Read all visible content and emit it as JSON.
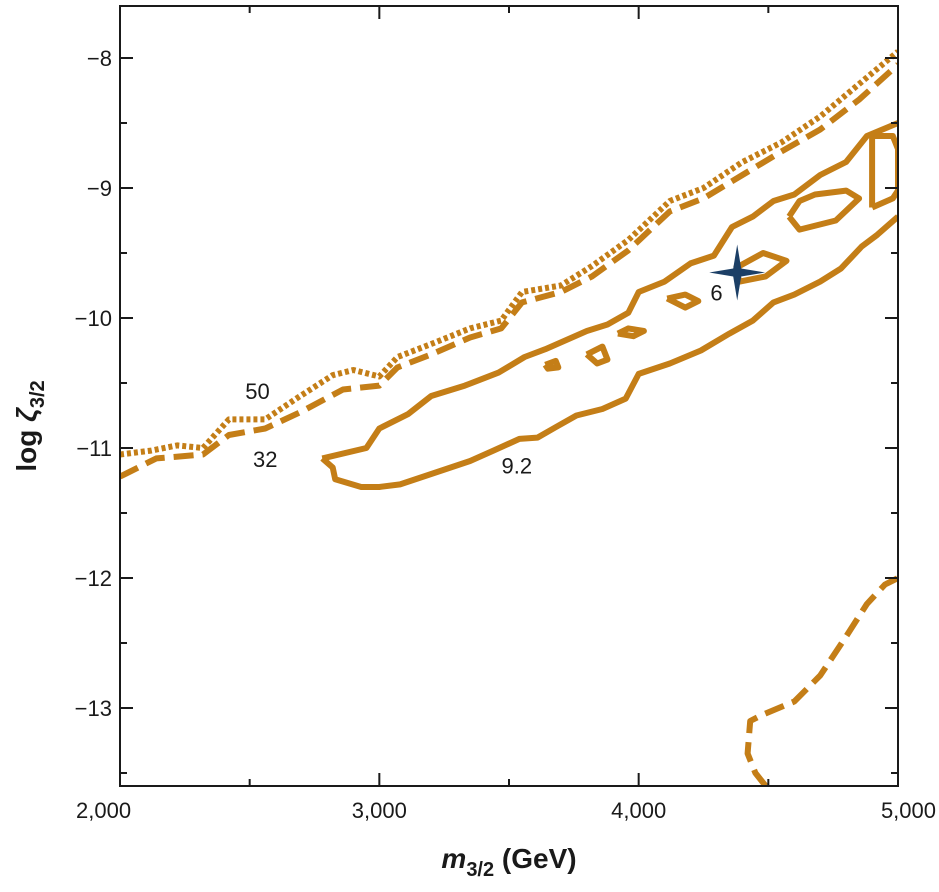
{
  "chart_data": {
    "type": "contour",
    "xlabel": {
      "symbol": "m",
      "sub": "3/2",
      "unit": " (GeV)"
    },
    "ylabel": {
      "prefix": "log ",
      "symbol": "ζ",
      "sub": "3/2"
    },
    "xlim": [
      2000,
      5000
    ],
    "ylim": [
      -13.6,
      -7.6
    ],
    "x_ticks": [
      2000,
      3000,
      4000,
      5000
    ],
    "x_tick_labels": [
      "2,000",
      "3,000",
      "4,000",
      "5,000"
    ],
    "y_ticks": [
      -8,
      -9,
      -10,
      -11,
      -12,
      -13
    ],
    "y_tick_labels": [
      "−8",
      "−9",
      "−10",
      "−11",
      "−12",
      "−13"
    ],
    "grid": false,
    "colors": {
      "contour": "#c47e17",
      "marker": "#1c3f66",
      "axis": "#1a1a1a"
    },
    "contours": [
      {
        "label": "50",
        "style": "dotted",
        "paths": [
          [
            [
              2000,
              -11.05
            ],
            [
              2120,
              -11.02
            ],
            [
              2220,
              -10.98
            ],
            [
              2320,
              -11.0
            ],
            [
              2420,
              -10.78
            ],
            [
              2560,
              -10.78
            ],
            [
              2680,
              -10.62
            ],
            [
              2820,
              -10.44
            ],
            [
              2900,
              -10.4
            ],
            [
              3000,
              -10.45
            ],
            [
              3070,
              -10.3
            ],
            [
              3200,
              -10.2
            ],
            [
              3350,
              -10.08
            ],
            [
              3470,
              -10.02
            ],
            [
              3550,
              -9.8
            ],
            [
              3700,
              -9.75
            ],
            [
              3820,
              -9.6
            ],
            [
              3960,
              -9.4
            ],
            [
              4120,
              -9.1
            ],
            [
              4250,
              -9.0
            ],
            [
              4400,
              -8.8
            ],
            [
              4550,
              -8.65
            ],
            [
              4700,
              -8.45
            ],
            [
              4850,
              -8.2
            ],
            [
              5000,
              -7.95
            ]
          ]
        ]
      },
      {
        "label": "32",
        "style": "dashed",
        "paths": [
          [
            [
              2000,
              -11.22
            ],
            [
              2140,
              -11.08
            ],
            [
              2320,
              -11.05
            ],
            [
              2420,
              -10.9
            ],
            [
              2560,
              -10.85
            ],
            [
              2700,
              -10.72
            ],
            [
              2860,
              -10.55
            ],
            [
              3000,
              -10.52
            ],
            [
              3070,
              -10.38
            ],
            [
              3200,
              -10.28
            ],
            [
              3350,
              -10.15
            ],
            [
              3470,
              -10.08
            ],
            [
              3550,
              -9.88
            ],
            [
              3700,
              -9.8
            ],
            [
              3820,
              -9.68
            ],
            [
              3960,
              -9.48
            ],
            [
              4120,
              -9.18
            ],
            [
              4250,
              -9.08
            ],
            [
              4400,
              -8.9
            ],
            [
              4550,
              -8.72
            ],
            [
              4700,
              -8.55
            ],
            [
              4850,
              -8.32
            ],
            [
              5000,
              -8.05
            ]
          ],
          [
            [
              4490,
              -13.6
            ],
            [
              4450,
              -13.5
            ],
            [
              4420,
              -13.35
            ],
            [
              4430,
              -13.1
            ],
            [
              4480,
              -13.05
            ],
            [
              4600,
              -12.95
            ],
            [
              4700,
              -12.75
            ],
            [
              4800,
              -12.45
            ],
            [
              4880,
              -12.2
            ],
            [
              4950,
              -12.05
            ],
            [
              5000,
              -12.0
            ]
          ]
        ]
      },
      {
        "label": "9.2",
        "style": "solid",
        "paths": [
          [
            [
              2780,
              -11.08
            ],
            [
              2950,
              -11.0
            ],
            [
              3000,
              -10.85
            ],
            [
              3110,
              -10.74
            ],
            [
              3200,
              -10.6
            ],
            [
              3330,
              -10.52
            ],
            [
              3460,
              -10.42
            ],
            [
              3560,
              -10.3
            ],
            [
              3640,
              -10.24
            ],
            [
              3800,
              -10.1
            ],
            [
              3880,
              -10.05
            ],
            [
              3960,
              -9.96
            ],
            [
              4000,
              -9.8
            ],
            [
              4100,
              -9.72
            ],
            [
              4200,
              -9.58
            ],
            [
              4290,
              -9.52
            ],
            [
              4360,
              -9.3
            ],
            [
              4440,
              -9.22
            ],
            [
              4520,
              -9.1
            ],
            [
              4600,
              -9.05
            ],
            [
              4700,
              -8.9
            ],
            [
              4800,
              -8.8
            ],
            [
              4880,
              -8.6
            ],
            [
              5000,
              -8.5
            ]
          ],
          [
            [
              2780,
              -11.08
            ],
            [
              2820,
              -11.15
            ],
            [
              2830,
              -11.24
            ],
            [
              2930,
              -11.3
            ],
            [
              3000,
              -11.3
            ],
            [
              3080,
              -11.28
            ],
            [
              3200,
              -11.2
            ],
            [
              3350,
              -11.1
            ],
            [
              3440,
              -11.02
            ],
            [
              3540,
              -10.93
            ],
            [
              3610,
              -10.92
            ],
            [
              3680,
              -10.84
            ],
            [
              3760,
              -10.75
            ],
            [
              3860,
              -10.7
            ],
            [
              3950,
              -10.62
            ],
            [
              4000,
              -10.43
            ],
            [
              4120,
              -10.35
            ],
            [
              4240,
              -10.25
            ],
            [
              4350,
              -10.12
            ],
            [
              4440,
              -10.02
            ],
            [
              4520,
              -9.88
            ],
            [
              4600,
              -9.82
            ],
            [
              4700,
              -9.72
            ],
            [
              4780,
              -9.62
            ],
            [
              4860,
              -9.45
            ],
            [
              4920,
              -9.36
            ],
            [
              5000,
              -9.22
            ]
          ],
          [
            [
              4900,
              -9.15
            ],
            [
              4980,
              -9.08
            ],
            [
              5000,
              -9.02
            ],
            [
              5000,
              -8.7
            ],
            [
              4980,
              -8.6
            ],
            [
              4900,
              -8.6
            ],
            [
              4900,
              -9.15
            ]
          ],
          [
            [
              4580,
              -9.22
            ],
            [
              4620,
              -9.1
            ],
            [
              4680,
              -9.05
            ],
            [
              4800,
              -9.02
            ],
            [
              4850,
              -9.08
            ],
            [
              4760,
              -9.25
            ],
            [
              4620,
              -9.32
            ],
            [
              4580,
              -9.22
            ]
          ],
          [
            [
              4370,
              -9.62
            ],
            [
              4480,
              -9.5
            ],
            [
              4570,
              -9.56
            ],
            [
              4490,
              -9.68
            ],
            [
              4390,
              -9.72
            ],
            [
              4370,
              -9.62
            ]
          ],
          [
            [
              4110,
              -9.85
            ],
            [
              4180,
              -9.82
            ],
            [
              4230,
              -9.87
            ],
            [
              4180,
              -9.92
            ],
            [
              4110,
              -9.85
            ]
          ],
          [
            [
              3920,
              -10.12
            ],
            [
              3960,
              -10.08
            ],
            [
              4020,
              -10.1
            ],
            [
              3980,
              -10.14
            ],
            [
              3920,
              -10.12
            ]
          ],
          [
            [
              3800,
              -10.28
            ],
            [
              3860,
              -10.22
            ],
            [
              3880,
              -10.32
            ],
            [
              3840,
              -10.35
            ],
            [
              3800,
              -10.28
            ]
          ],
          [
            [
              3640,
              -10.36
            ],
            [
              3680,
              -10.33
            ],
            [
              3690,
              -10.38
            ],
            [
              3650,
              -10.39
            ],
            [
              3640,
              -10.36
            ]
          ]
        ]
      }
    ],
    "labels": [
      {
        "text": "50",
        "x": 2530,
        "y": -10.58
      },
      {
        "text": "32",
        "x": 2560,
        "y": -11.1
      },
      {
        "text": "9.2",
        "x": 3530,
        "y": -11.15
      },
      {
        "text": "6",
        "x": 4300,
        "y": -9.82
      }
    ],
    "best_fit": {
      "x": 4380,
      "y": -9.65
    }
  }
}
